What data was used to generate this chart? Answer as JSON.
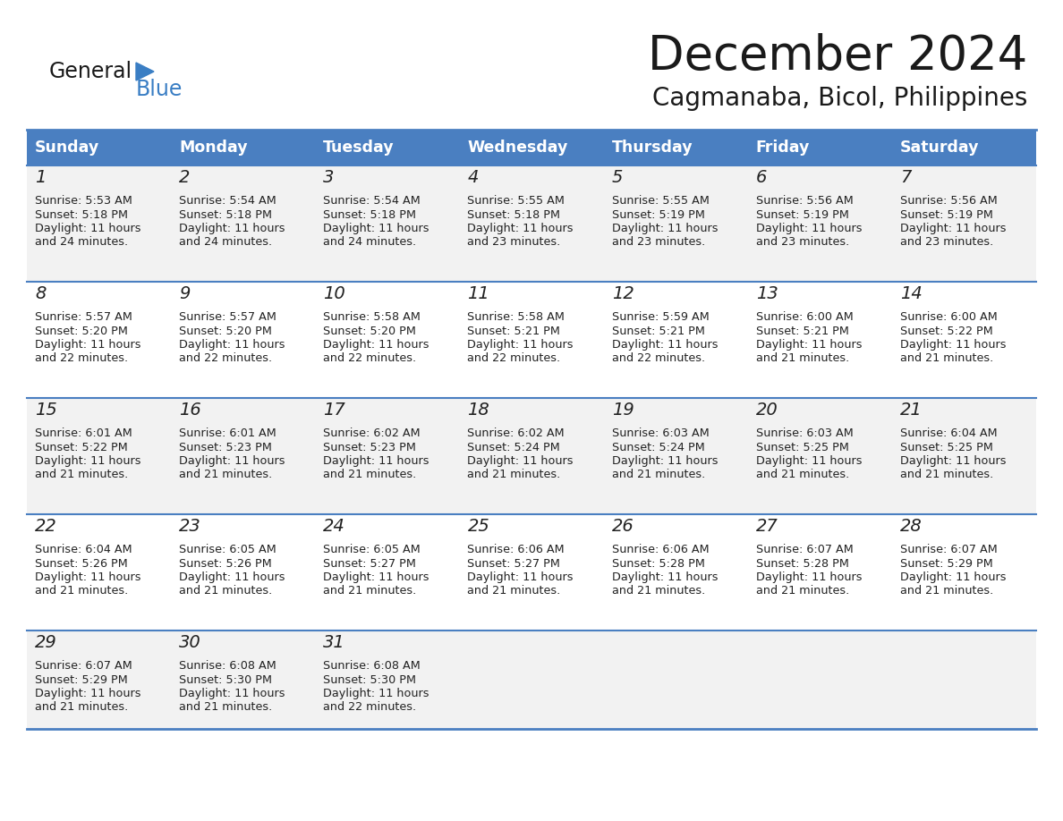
{
  "title": "December 2024",
  "subtitle": "Cagmanaba, Bicol, Philippines",
  "days_of_week": [
    "Sunday",
    "Monday",
    "Tuesday",
    "Wednesday",
    "Thursday",
    "Friday",
    "Saturday"
  ],
  "header_bg": "#4a7fc1",
  "header_text": "#FFFFFF",
  "row_bg_odd": "#f2f2f2",
  "row_bg_even": "#ffffff",
  "border_color": "#4a7fc1",
  "text_color": "#222222",
  "title_color": "#1a1a1a",
  "subtitle_color": "#1a1a1a",
  "logo_general_color": "#1a1a1a",
  "logo_blue_color": "#3a7ec4",
  "logo_triangle_color": "#3a7ec4",
  "calendar_data": [
    [
      {
        "day": 1,
        "sunrise": "5:53 AM",
        "sunset": "5:18 PM",
        "daylight_hours": 11,
        "daylight_minutes": 24
      },
      {
        "day": 2,
        "sunrise": "5:54 AM",
        "sunset": "5:18 PM",
        "daylight_hours": 11,
        "daylight_minutes": 24
      },
      {
        "day": 3,
        "sunrise": "5:54 AM",
        "sunset": "5:18 PM",
        "daylight_hours": 11,
        "daylight_minutes": 24
      },
      {
        "day": 4,
        "sunrise": "5:55 AM",
        "sunset": "5:18 PM",
        "daylight_hours": 11,
        "daylight_minutes": 23
      },
      {
        "day": 5,
        "sunrise": "5:55 AM",
        "sunset": "5:19 PM",
        "daylight_hours": 11,
        "daylight_minutes": 23
      },
      {
        "day": 6,
        "sunrise": "5:56 AM",
        "sunset": "5:19 PM",
        "daylight_hours": 11,
        "daylight_minutes": 23
      },
      {
        "day": 7,
        "sunrise": "5:56 AM",
        "sunset": "5:19 PM",
        "daylight_hours": 11,
        "daylight_minutes": 23
      }
    ],
    [
      {
        "day": 8,
        "sunrise": "5:57 AM",
        "sunset": "5:20 PM",
        "daylight_hours": 11,
        "daylight_minutes": 22
      },
      {
        "day": 9,
        "sunrise": "5:57 AM",
        "sunset": "5:20 PM",
        "daylight_hours": 11,
        "daylight_minutes": 22
      },
      {
        "day": 10,
        "sunrise": "5:58 AM",
        "sunset": "5:20 PM",
        "daylight_hours": 11,
        "daylight_minutes": 22
      },
      {
        "day": 11,
        "sunrise": "5:58 AM",
        "sunset": "5:21 PM",
        "daylight_hours": 11,
        "daylight_minutes": 22
      },
      {
        "day": 12,
        "sunrise": "5:59 AM",
        "sunset": "5:21 PM",
        "daylight_hours": 11,
        "daylight_minutes": 22
      },
      {
        "day": 13,
        "sunrise": "6:00 AM",
        "sunset": "5:21 PM",
        "daylight_hours": 11,
        "daylight_minutes": 21
      },
      {
        "day": 14,
        "sunrise": "6:00 AM",
        "sunset": "5:22 PM",
        "daylight_hours": 11,
        "daylight_minutes": 21
      }
    ],
    [
      {
        "day": 15,
        "sunrise": "6:01 AM",
        "sunset": "5:22 PM",
        "daylight_hours": 11,
        "daylight_minutes": 21
      },
      {
        "day": 16,
        "sunrise": "6:01 AM",
        "sunset": "5:23 PM",
        "daylight_hours": 11,
        "daylight_minutes": 21
      },
      {
        "day": 17,
        "sunrise": "6:02 AM",
        "sunset": "5:23 PM",
        "daylight_hours": 11,
        "daylight_minutes": 21
      },
      {
        "day": 18,
        "sunrise": "6:02 AM",
        "sunset": "5:24 PM",
        "daylight_hours": 11,
        "daylight_minutes": 21
      },
      {
        "day": 19,
        "sunrise": "6:03 AM",
        "sunset": "5:24 PM",
        "daylight_hours": 11,
        "daylight_minutes": 21
      },
      {
        "day": 20,
        "sunrise": "6:03 AM",
        "sunset": "5:25 PM",
        "daylight_hours": 11,
        "daylight_minutes": 21
      },
      {
        "day": 21,
        "sunrise": "6:04 AM",
        "sunset": "5:25 PM",
        "daylight_hours": 11,
        "daylight_minutes": 21
      }
    ],
    [
      {
        "day": 22,
        "sunrise": "6:04 AM",
        "sunset": "5:26 PM",
        "daylight_hours": 11,
        "daylight_minutes": 21
      },
      {
        "day": 23,
        "sunrise": "6:05 AM",
        "sunset": "5:26 PM",
        "daylight_hours": 11,
        "daylight_minutes": 21
      },
      {
        "day": 24,
        "sunrise": "6:05 AM",
        "sunset": "5:27 PM",
        "daylight_hours": 11,
        "daylight_minutes": 21
      },
      {
        "day": 25,
        "sunrise": "6:06 AM",
        "sunset": "5:27 PM",
        "daylight_hours": 11,
        "daylight_minutes": 21
      },
      {
        "day": 26,
        "sunrise": "6:06 AM",
        "sunset": "5:28 PM",
        "daylight_hours": 11,
        "daylight_minutes": 21
      },
      {
        "day": 27,
        "sunrise": "6:07 AM",
        "sunset": "5:28 PM",
        "daylight_hours": 11,
        "daylight_minutes": 21
      },
      {
        "day": 28,
        "sunrise": "6:07 AM",
        "sunset": "5:29 PM",
        "daylight_hours": 11,
        "daylight_minutes": 21
      }
    ],
    [
      {
        "day": 29,
        "sunrise": "6:07 AM",
        "sunset": "5:29 PM",
        "daylight_hours": 11,
        "daylight_minutes": 21
      },
      {
        "day": 30,
        "sunrise": "6:08 AM",
        "sunset": "5:30 PM",
        "daylight_hours": 11,
        "daylight_minutes": 21
      },
      {
        "day": 31,
        "sunrise": "6:08 AM",
        "sunset": "5:30 PM",
        "daylight_hours": 11,
        "daylight_minutes": 22
      },
      null,
      null,
      null,
      null
    ]
  ]
}
